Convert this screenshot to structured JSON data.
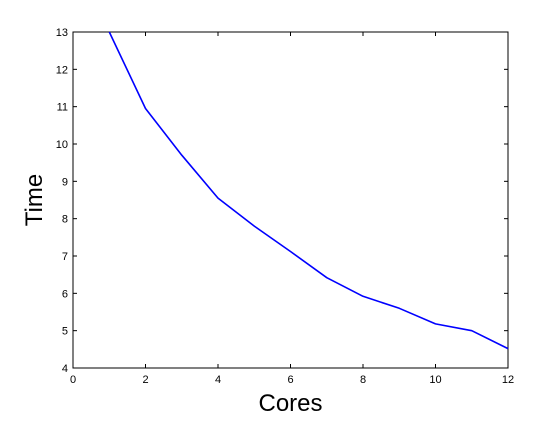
{
  "chart_data": {
    "type": "line",
    "title": "",
    "xlabel": "Cores",
    "ylabel": "Time",
    "xlim": [
      0,
      12
    ],
    "ylim": [
      4,
      13
    ],
    "xticks": [
      0,
      2,
      4,
      6,
      8,
      10,
      12
    ],
    "yticks": [
      4,
      5,
      6,
      7,
      8,
      9,
      10,
      11,
      12,
      13
    ],
    "grid": false,
    "legend": "none",
    "series": [
      {
        "color": "#0000ff",
        "x": [
          1,
          2,
          3,
          4,
          5,
          6,
          7,
          8,
          9,
          10,
          11,
          12
        ],
        "y": [
          13.0,
          10.95,
          9.7,
          8.55,
          7.8,
          7.12,
          6.42,
          5.92,
          5.6,
          5.18,
          5.0,
          4.52
        ]
      }
    ]
  }
}
